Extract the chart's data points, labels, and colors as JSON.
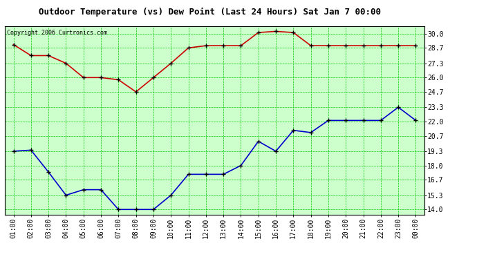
{
  "title": "Outdoor Temperature (vs) Dew Point (Last 24 Hours) Sat Jan 7 00:00",
  "copyright_text": "Copyright 2006 Curtronics.com",
  "x_labels": [
    "01:00",
    "02:00",
    "03:00",
    "04:00",
    "05:00",
    "06:00",
    "07:00",
    "08:00",
    "09:00",
    "10:00",
    "11:00",
    "12:00",
    "13:00",
    "14:00",
    "15:00",
    "16:00",
    "17:00",
    "18:00",
    "19:00",
    "20:00",
    "21:00",
    "22:00",
    "23:00",
    "00:00"
  ],
  "red_data": [
    29.0,
    28.0,
    28.0,
    27.3,
    26.0,
    26.0,
    25.8,
    24.7,
    26.0,
    27.3,
    28.7,
    28.9,
    28.9,
    28.9,
    30.1,
    30.2,
    30.1,
    28.9,
    28.9,
    28.9,
    28.9,
    28.9,
    28.9,
    28.9
  ],
  "blue_data": [
    19.3,
    19.4,
    17.4,
    15.3,
    15.8,
    15.8,
    14.0,
    14.0,
    14.0,
    15.3,
    17.2,
    17.2,
    17.2,
    18.0,
    20.2,
    19.3,
    21.2,
    21.0,
    22.1,
    22.1,
    22.1,
    22.1,
    23.3,
    22.1
  ],
  "y_ticks": [
    14.0,
    15.3,
    16.7,
    18.0,
    19.3,
    20.7,
    22.0,
    23.3,
    24.7,
    26.0,
    27.3,
    28.7,
    30.0
  ],
  "ylim": [
    13.5,
    30.7
  ],
  "bg_color": "#ffffff",
  "plot_bg_color": "#ccffcc",
  "grid_color": "#00cc00",
  "red_color": "#cc0000",
  "blue_color": "#0000cc",
  "title_fontsize": 9,
  "tick_fontsize": 7,
  "copyright_fontsize": 6
}
